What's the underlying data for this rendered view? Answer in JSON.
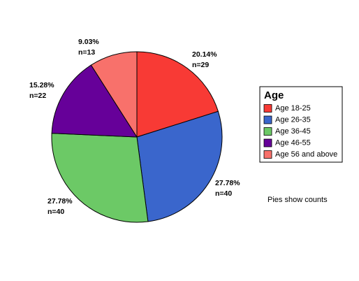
{
  "chart_data": {
    "type": "pie",
    "categories": [
      "Age 18-25",
      "Age 26-35",
      "Age 36-45",
      "Age 46-55",
      "Age 56 and above"
    ],
    "values": [
      29,
      40,
      40,
      22,
      13
    ],
    "value_labels": [
      "n=29",
      "n=40",
      "n=40",
      "n=22",
      "n=13"
    ],
    "percent_labels": [
      "20.14%",
      "27.78%",
      "27.78%",
      "15.28%",
      "9.03%"
    ],
    "colors": [
      "#f83a35",
      "#3a66cc",
      "#6cc966",
      "#660099",
      "#f8716b"
    ],
    "legend_title": "Age",
    "legend": "right",
    "annotation": "Pies show counts"
  }
}
